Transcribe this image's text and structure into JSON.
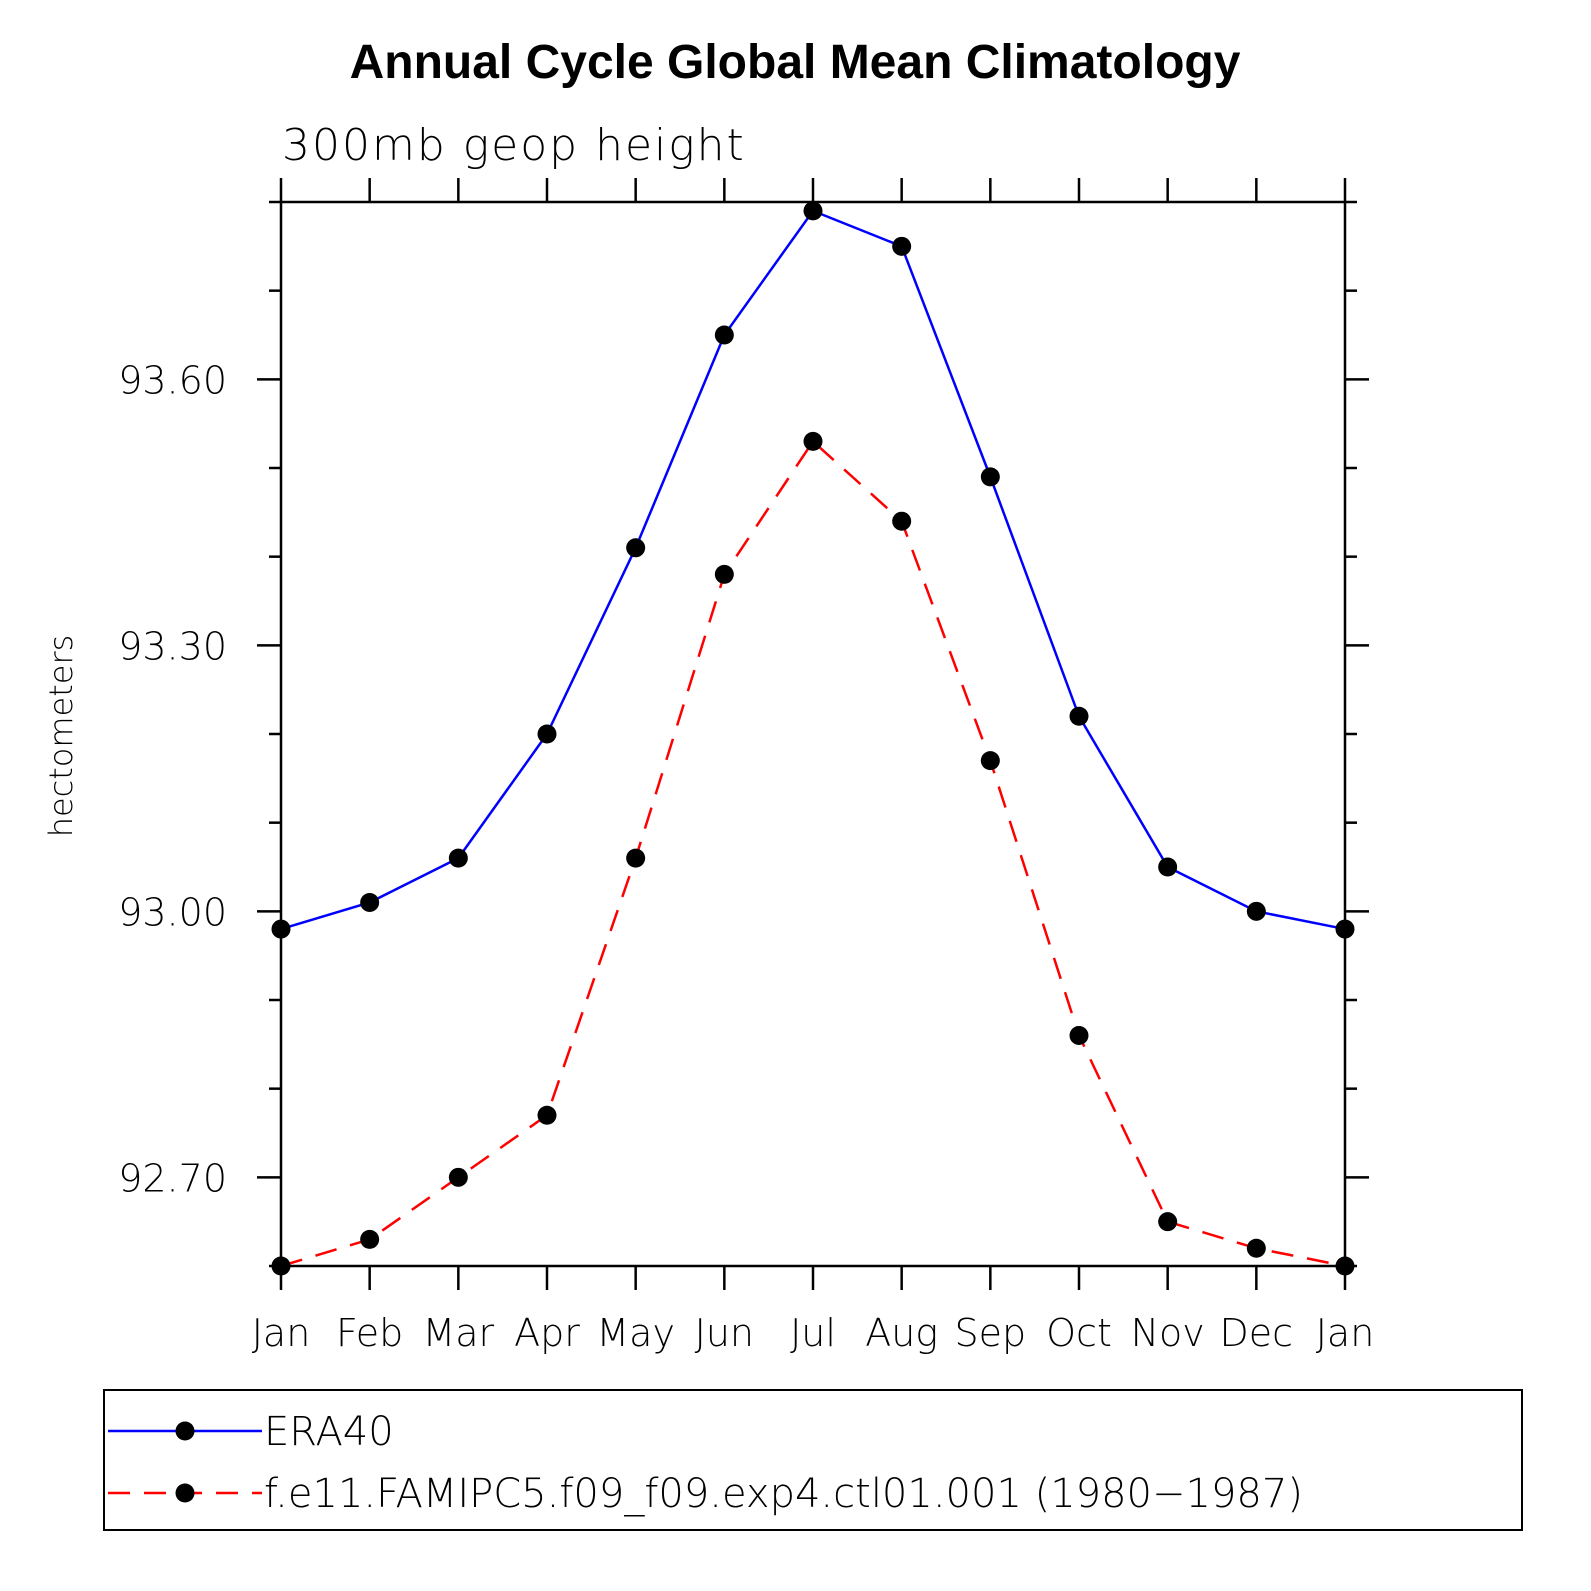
{
  "chart_data": {
    "type": "line",
    "title": "Annual Cycle Global Mean Climatology",
    "subtitle": "300mb geop height",
    "ylabel": "hectometers",
    "xlabel": "",
    "categories": [
      "Jan",
      "Feb",
      "Mar",
      "Apr",
      "May",
      "Jun",
      "Jul",
      "Aug",
      "Sep",
      "Oct",
      "Nov",
      "Dec",
      "Jan"
    ],
    "ylim": [
      92.6,
      93.8
    ],
    "yticks": [
      92.7,
      93.0,
      93.3,
      93.6
    ],
    "ytick_labels": [
      "92.70",
      "93.00",
      "93.30",
      "93.60"
    ],
    "series": [
      {
        "name": "ERA40",
        "color": "#0000ff",
        "dash": "solid",
        "values": [
          92.98,
          93.01,
          93.06,
          93.2,
          93.41,
          93.65,
          93.79,
          93.75,
          93.49,
          93.22,
          93.05,
          93.0,
          92.98
        ]
      },
      {
        "name": "f.e11.FAMIPC5.f09_f09.exp4.ctl01.001 (1980−1987)",
        "color": "#ff0000",
        "dash": "dashed",
        "values": [
          92.6,
          92.63,
          92.7,
          92.77,
          93.06,
          93.38,
          93.53,
          93.44,
          93.17,
          92.86,
          92.65,
          92.62,
          92.6
        ]
      }
    ],
    "legend_position": "bottom",
    "grid": false
  }
}
